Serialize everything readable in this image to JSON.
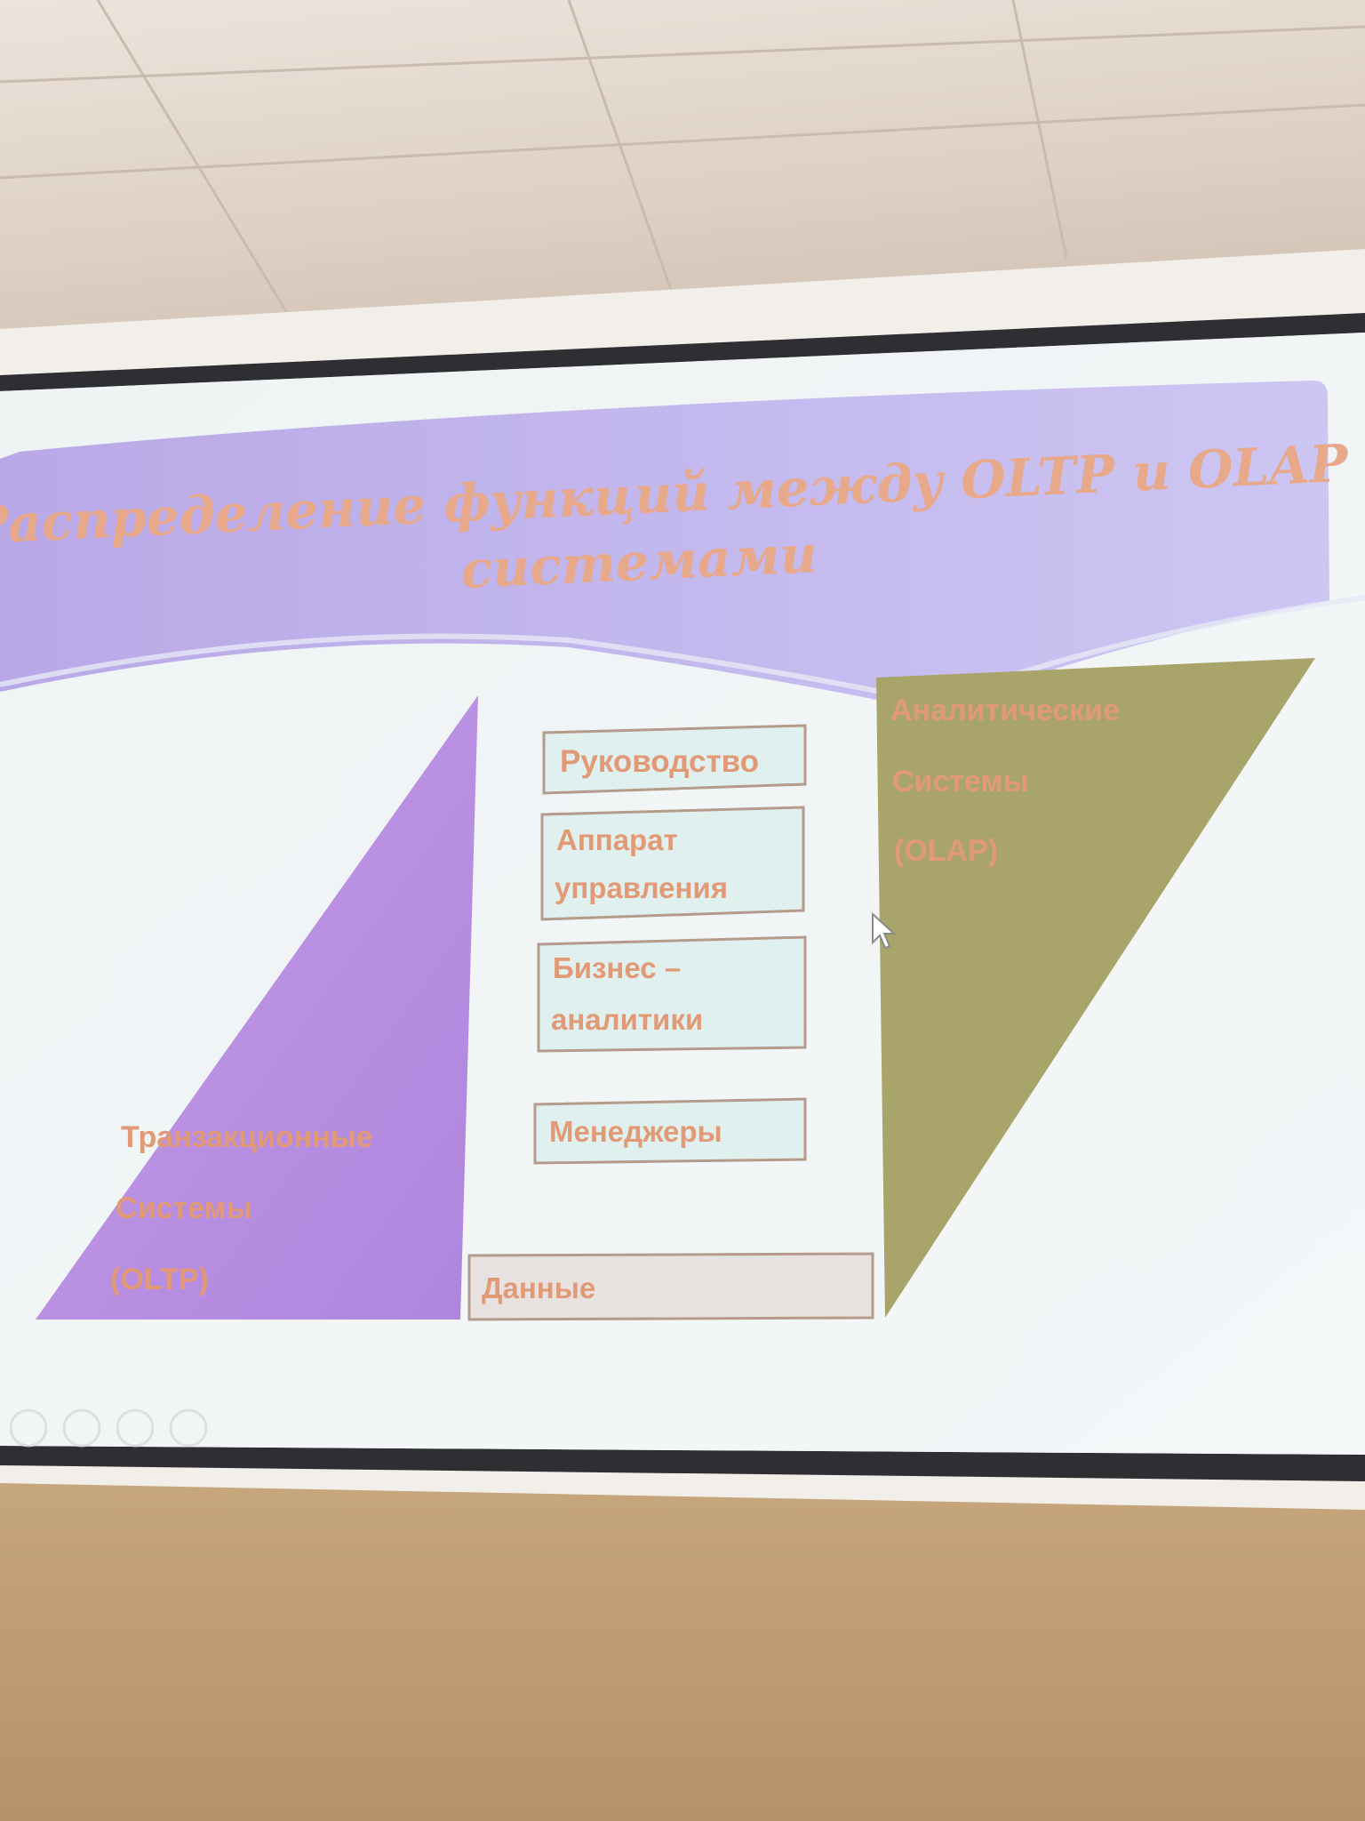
{
  "slide": {
    "title_line1": "Распределение функций между OLTP и OLAP",
    "title_line2": "системами",
    "oltp": {
      "line1": "Транзакционные",
      "line2": "Системы",
      "line3": "(OLTP)",
      "color": "#b78ce0"
    },
    "olap": {
      "line1": "Аналитические",
      "line2": "Системы",
      "line3": "(OLAP)",
      "color": "#a9a46a"
    },
    "levels": {
      "management": "Руководство",
      "apparatus_line1": "Аппарат",
      "apparatus_line2": "управления",
      "analysts_line1": "Бизнес –",
      "analysts_line2": "аналитики",
      "managers": "Менеджеры",
      "data": "Данные"
    },
    "text_color": "#e29a76"
  }
}
